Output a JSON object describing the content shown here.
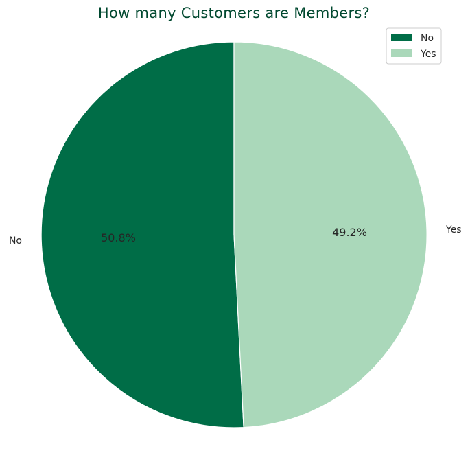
{
  "chart_data": {
    "type": "pie",
    "title": "How many Customers are Members?",
    "labels": [
      "No",
      "Yes"
    ],
    "values": [
      50.8,
      49.2
    ],
    "value_labels": [
      "50.8%",
      "49.2%"
    ],
    "colors": [
      "#006d47",
      "#aad8ba"
    ],
    "start_angle_deg": 90,
    "direction": "counterclockwise",
    "legend": {
      "position": "top-right",
      "entries": [
        "No",
        "Yes"
      ]
    }
  },
  "style": {
    "title_color": "#00482f",
    "text_color": "#262626",
    "slice_edge_color": "#ffffff",
    "legend_border_color": "#cccccc"
  }
}
